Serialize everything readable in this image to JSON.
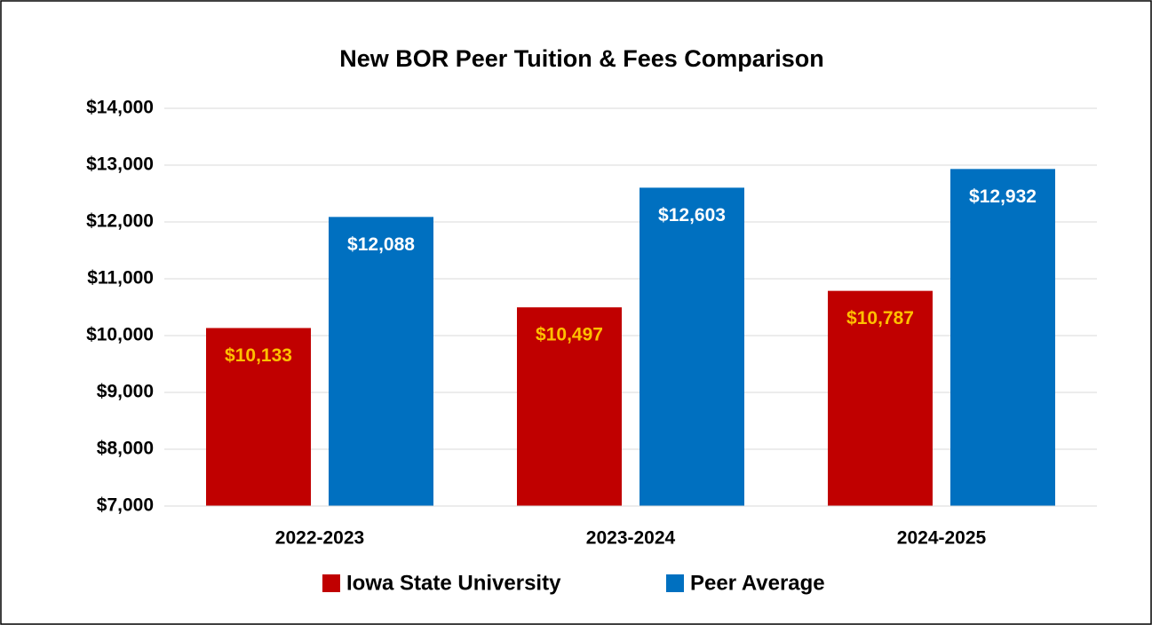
{
  "chart_data": {
    "type": "bar",
    "title": "New BOR Peer Tuition & Fees Comparison",
    "categories": [
      "2022-2023",
      "2023-2024",
      "2024-2025"
    ],
    "series": [
      {
        "name": "Iowa State University",
        "color": "#c00000",
        "label_color": "#ffc000",
        "values": [
          10133,
          10497,
          10787
        ],
        "value_labels": [
          "$10,133",
          "$10,497",
          "$10,787"
        ]
      },
      {
        "name": "Peer Average",
        "color": "#0070c0",
        "label_color": "#ffffff",
        "values": [
          12088,
          12603,
          12932
        ],
        "value_labels": [
          "$12,088",
          "$12,603",
          "$12,932"
        ]
      }
    ],
    "ylim": [
      7000,
      14000
    ],
    "yticks": [
      {
        "value": 7000,
        "label": "$7,000"
      },
      {
        "value": 8000,
        "label": "$8,000"
      },
      {
        "value": 9000,
        "label": "$9,000"
      },
      {
        "value": 10000,
        "label": "$10,000"
      },
      {
        "value": 11000,
        "label": "$11,000"
      },
      {
        "value": 12000,
        "label": "$12,000"
      },
      {
        "value": 13000,
        "label": "$13,000"
      },
      {
        "value": 14000,
        "label": "$14,000"
      }
    ],
    "grid": true,
    "legend": "bottom"
  }
}
